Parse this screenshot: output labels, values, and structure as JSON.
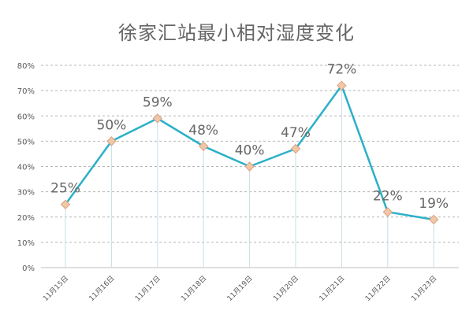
{
  "chart_data": {
    "type": "line",
    "title": "徐家汇站最小相对湿度变化",
    "xlabel": "",
    "ylabel": "",
    "categories": [
      "11月15日",
      "11月16日",
      "11月17日",
      "11月18日",
      "11月19日",
      "11月20日",
      "11月21日",
      "11月22日",
      "11月23日"
    ],
    "series": [
      {
        "values": [
          25,
          50,
          59,
          48,
          40,
          47,
          72,
          22,
          19
        ],
        "data_labels": [
          "25%",
          "50%",
          "59%",
          "48%",
          "40%",
          "47%",
          "72%",
          "22%",
          "19%"
        ]
      }
    ],
    "ylim": [
      0,
      80
    ],
    "y_ticks": [
      "0%",
      "10%",
      "20%",
      "30%",
      "40%",
      "50%",
      "60%",
      "70%",
      "80%"
    ],
    "grid": "horizontal dashed",
    "legend": "none",
    "colors": {
      "line": "#2bb0c8",
      "marker_fill": "#f0c8a8",
      "marker_stroke": "#d9a080",
      "drop_line": "#c8dde6",
      "grid": "#b5b5b5",
      "axis": "#bfbfbf",
      "label_text": "#666666",
      "tick_text": "#595959"
    }
  }
}
